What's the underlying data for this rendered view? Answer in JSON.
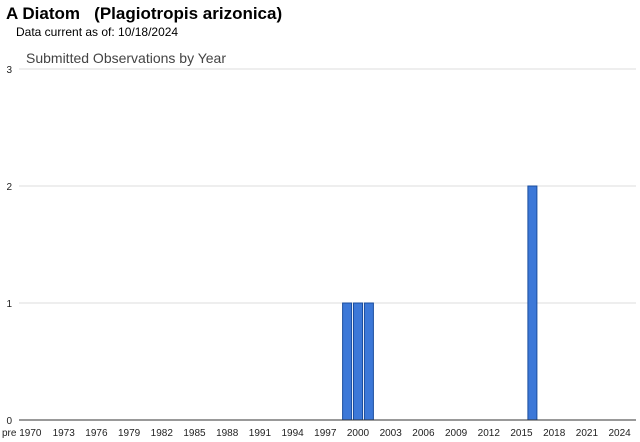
{
  "header": {
    "title": "A Diatom   (Plagiotropis arizonica)",
    "data_current": "Data current as of: 10/18/2024"
  },
  "chart_data": {
    "type": "bar",
    "title": "Submitted Observations by Year",
    "xlabel": "",
    "ylabel": "",
    "ylim": [
      0,
      3
    ],
    "y_ticks": [
      0,
      1,
      2,
      3
    ],
    "x_tick_labels": [
      "pre 1970",
      "1973",
      "1976",
      "1979",
      "1982",
      "1985",
      "1988",
      "1991",
      "1994",
      "1997",
      "2000",
      "2003",
      "2006",
      "2009",
      "2012",
      "2015",
      "2018",
      "2021",
      "2024"
    ],
    "categories": [
      "1999",
      "2000",
      "2001",
      "2016"
    ],
    "values": [
      1,
      1,
      1,
      2
    ],
    "bar_color": "#3c78d8",
    "bar_edge": "#1a4d9e",
    "grid": true,
    "legend": "none"
  }
}
